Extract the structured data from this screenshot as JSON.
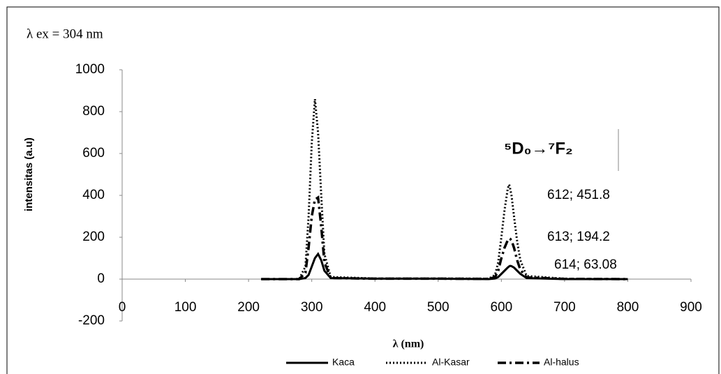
{
  "chart_data": {
    "type": "line",
    "annotations": [
      "λ  ex = 304 nm",
      "⁵D₀→⁷F₂",
      "612; 451.8",
      "613; 194.2",
      "614; 63.08"
    ],
    "xlabel": "λ (nm)",
    "ylabel": "intensitas (a.u)",
    "x": [
      220,
      280,
      290,
      295,
      300,
      305,
      310,
      315,
      320,
      330,
      400,
      500,
      580,
      590,
      595,
      600,
      605,
      610,
      612,
      613,
      614,
      616,
      620,
      625,
      630,
      640,
      700,
      800
    ],
    "series": [
      {
        "name": "Kaca",
        "color": "#000000",
        "style": "solid",
        "values": [
          0,
          0,
          5,
          20,
          60,
          100,
          120,
          90,
          40,
          5,
          2,
          2,
          0,
          3,
          10,
          25,
          40,
          55,
          60,
          62,
          63.08,
          62,
          55,
          40,
          25,
          5,
          0,
          0
        ]
      },
      {
        "name": "Al-Kasar",
        "color": "#000000",
        "style": "dotted",
        "values": [
          0,
          0,
          60,
          300,
          650,
          860,
          700,
          400,
          120,
          10,
          3,
          3,
          2,
          20,
          80,
          200,
          330,
          430,
          451.8,
          445,
          430,
          400,
          300,
          180,
          90,
          15,
          2,
          0
        ]
      },
      {
        "name": "Al-halus",
        "color": "#000000",
        "style": "dashdot",
        "values": [
          0,
          0,
          30,
          150,
          300,
          380,
          390,
          250,
          80,
          5,
          2,
          2,
          1,
          10,
          40,
          100,
          150,
          185,
          192,
          194.2,
          192,
          185,
          150,
          90,
          45,
          8,
          1,
          0
        ]
      }
    ],
    "xlim": [
      0,
      900
    ],
    "xticks": [
      0,
      100,
      200,
      300,
      400,
      500,
      600,
      700,
      800,
      900
    ],
    "ylim": [
      -200,
      1000
    ],
    "yticks": [
      -200,
      0,
      200,
      400,
      600,
      800,
      1000
    ],
    "grid": false,
    "legend": "bottom"
  }
}
